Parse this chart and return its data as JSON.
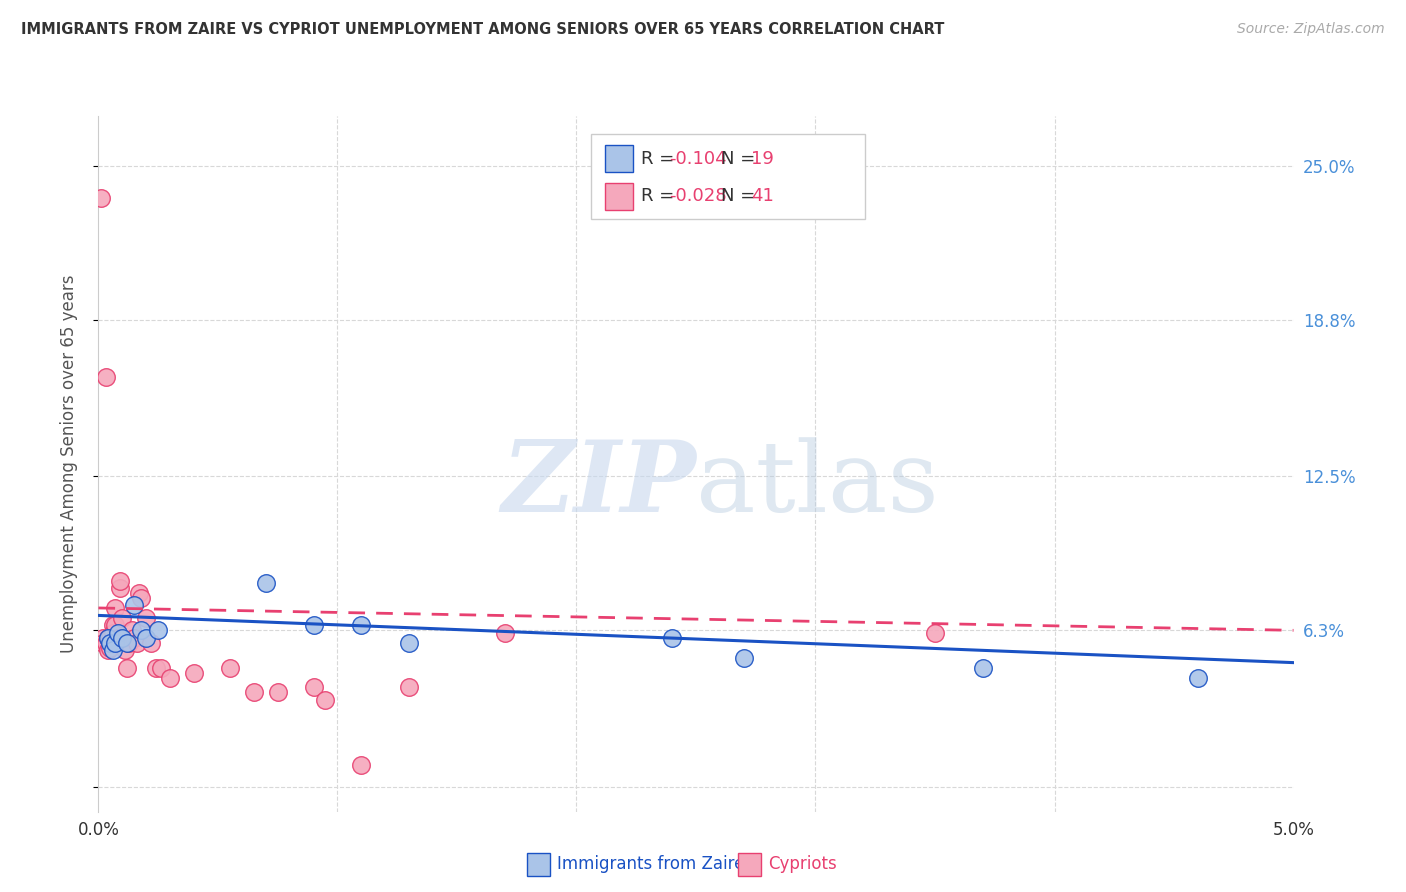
{
  "title": "IMMIGRANTS FROM ZAIRE VS CYPRIOT UNEMPLOYMENT AMONG SENIORS OVER 65 YEARS CORRELATION CHART",
  "source": "Source: ZipAtlas.com",
  "xlabel_bottom": [
    "Immigrants from Zaire",
    "Cypriots"
  ],
  "ylabel": "Unemployment Among Seniors over 65 years",
  "xlim": [
    0.0,
    0.05
  ],
  "ylim": [
    -0.01,
    0.27
  ],
  "yticks": [
    0.0,
    0.063,
    0.125,
    0.188,
    0.25
  ],
  "ytick_labels": [
    "",
    "6.3%",
    "12.5%",
    "18.8%",
    "25.0%"
  ],
  "xticks": [
    0.0,
    0.01,
    0.02,
    0.03,
    0.04,
    0.05
  ],
  "xtick_labels": [
    "0.0%",
    "",
    "",
    "",
    "",
    "5.0%"
  ],
  "blue_R": -0.104,
  "blue_N": 19,
  "pink_R": -0.028,
  "pink_N": 41,
  "blue_color": "#aac4e8",
  "pink_color": "#f5a8bc",
  "blue_line_color": "#1a52c4",
  "pink_line_color": "#e84070",
  "title_color": "#333333",
  "source_color": "#aaaaaa",
  "axis_label_color": "#555555",
  "right_tick_color": "#4a90d9",
  "blue_scatter_x": [
    0.0004,
    0.0005,
    0.0006,
    0.0007,
    0.0008,
    0.001,
    0.0012,
    0.0015,
    0.0018,
    0.002,
    0.0025,
    0.007,
    0.009,
    0.011,
    0.013,
    0.024,
    0.027,
    0.037,
    0.046
  ],
  "blue_scatter_y": [
    0.06,
    0.058,
    0.055,
    0.058,
    0.062,
    0.06,
    0.058,
    0.073,
    0.063,
    0.06,
    0.063,
    0.082,
    0.065,
    0.065,
    0.058,
    0.06,
    0.052,
    0.048,
    0.044
  ],
  "pink_scatter_x": [
    0.0001,
    0.0002,
    0.0002,
    0.0003,
    0.0003,
    0.0004,
    0.0004,
    0.0005,
    0.0005,
    0.0006,
    0.0006,
    0.0007,
    0.0007,
    0.0008,
    0.0008,
    0.0009,
    0.0009,
    0.001,
    0.0011,
    0.0012,
    0.0013,
    0.0014,
    0.0015,
    0.0016,
    0.0017,
    0.0018,
    0.002,
    0.0022,
    0.0024,
    0.0026,
    0.003,
    0.004,
    0.0055,
    0.0065,
    0.0075,
    0.009,
    0.0095,
    0.011,
    0.013,
    0.017,
    0.035
  ],
  "pink_scatter_y": [
    0.237,
    0.06,
    0.058,
    0.165,
    0.058,
    0.06,
    0.055,
    0.06,
    0.056,
    0.065,
    0.062,
    0.072,
    0.065,
    0.06,
    0.058,
    0.08,
    0.083,
    0.068,
    0.055,
    0.048,
    0.058,
    0.063,
    0.06,
    0.058,
    0.078,
    0.076,
    0.068,
    0.058,
    0.048,
    0.048,
    0.044,
    0.046,
    0.048,
    0.038,
    0.038,
    0.04,
    0.035,
    0.009,
    0.04,
    0.062,
    0.062
  ],
  "blue_line_x": [
    0.0,
    0.05
  ],
  "blue_line_y": [
    0.069,
    0.05
  ],
  "pink_line_x": [
    0.0,
    0.05
  ],
  "pink_line_y": [
    0.072,
    0.063
  ],
  "watermark_zip": "ZIP",
  "watermark_atlas": "atlas",
  "background_color": "#ffffff",
  "grid_color": "#d8d8d8"
}
